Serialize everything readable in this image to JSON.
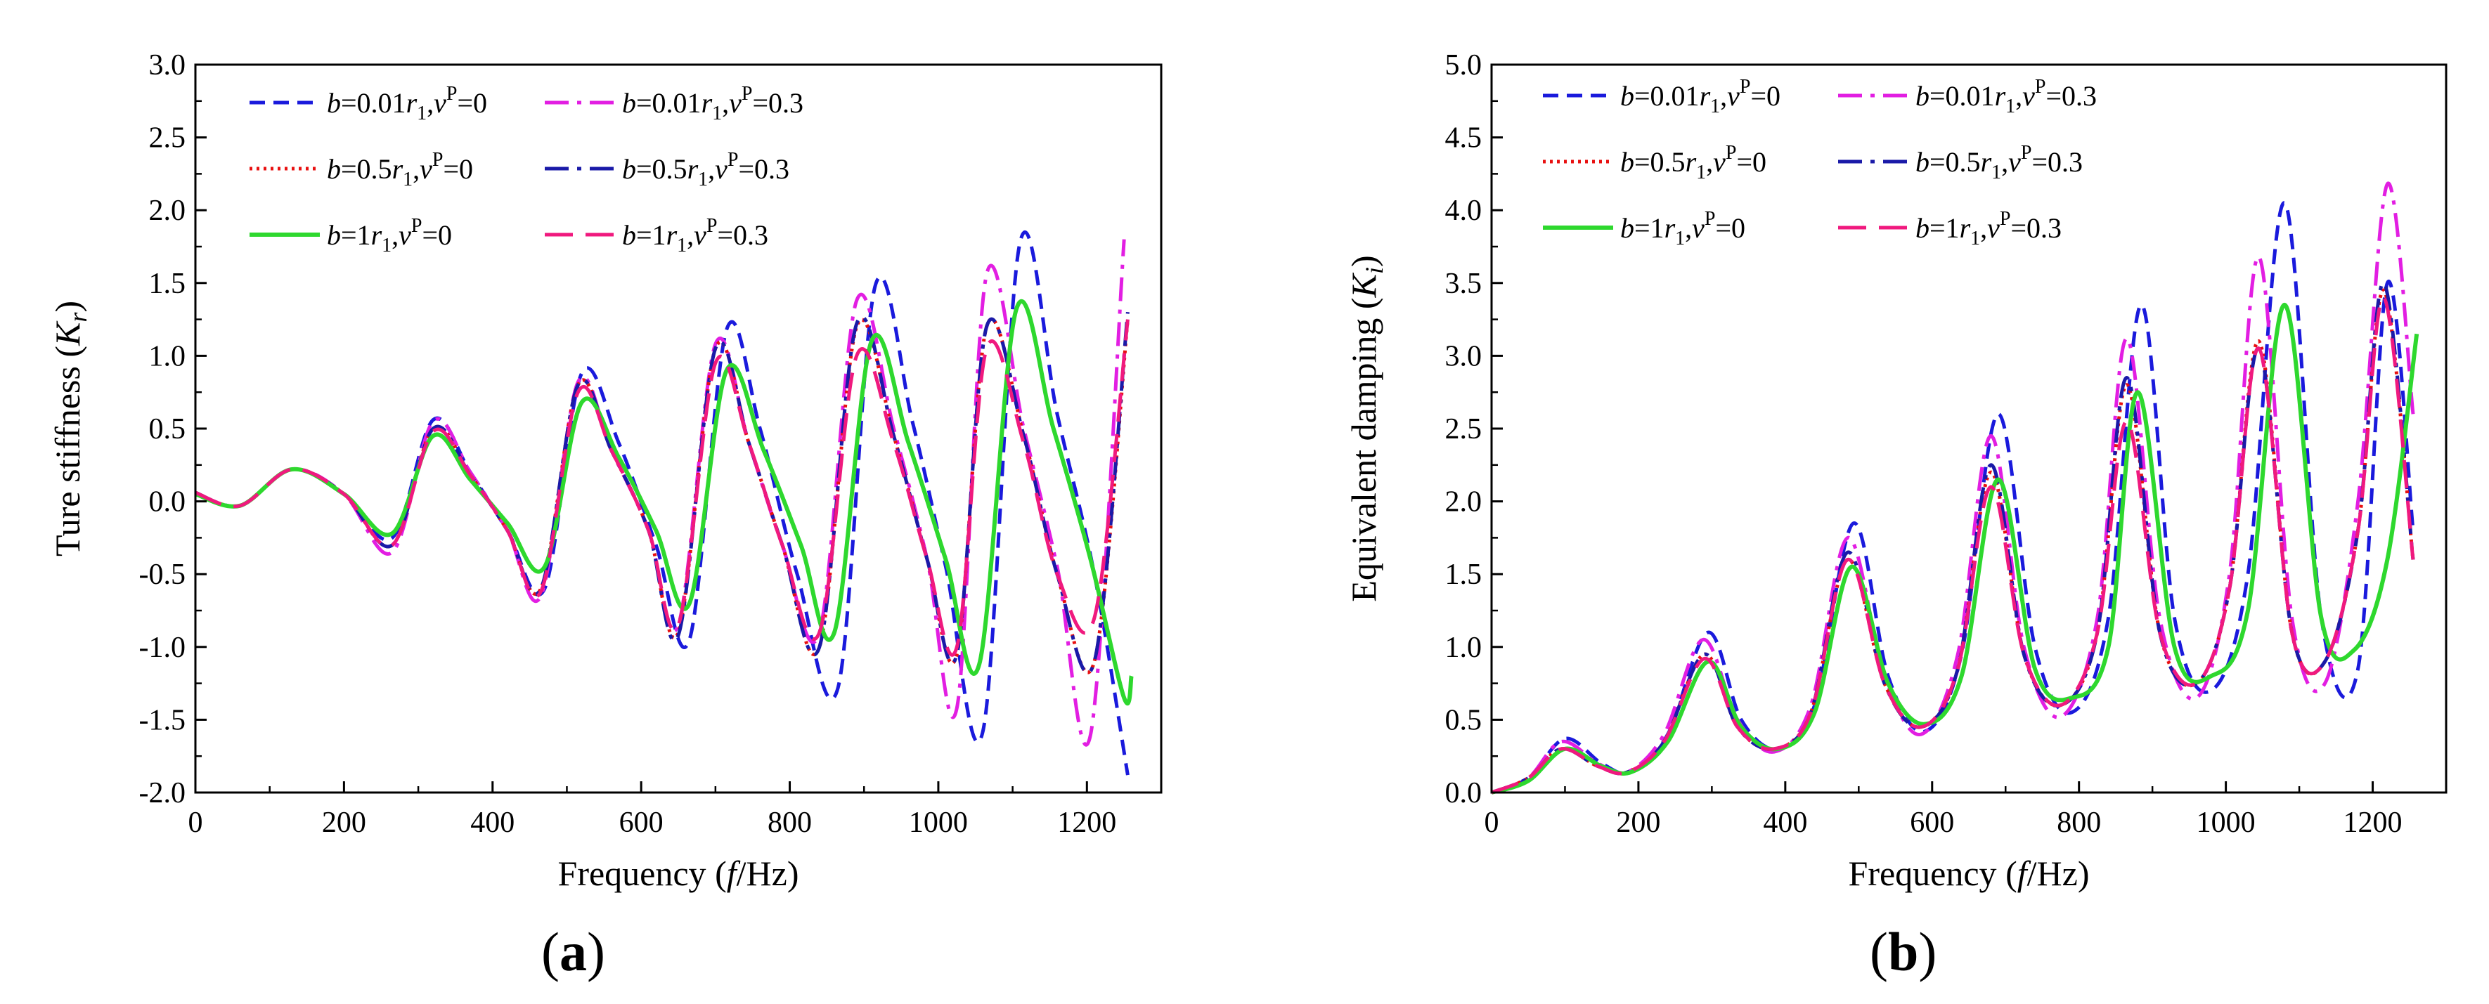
{
  "chart_data": [
    {
      "panel": "(a)",
      "type": "line",
      "xlabel": "Frequency",
      "xlabel_unit": "(f/Hz)",
      "ylabel": "Ture stiffness",
      "ylabel_symbol": "(Kr)",
      "xlim": [
        0,
        1300
      ],
      "ylim": [
        -2.0,
        3.0
      ],
      "xticks": [
        0,
        200,
        400,
        600,
        800,
        1000,
        1200
      ],
      "yticks": [
        -2.0,
        -1.5,
        -1.0,
        -0.5,
        0.0,
        0.5,
        1.0,
        1.5,
        2.0,
        2.5,
        3.0
      ],
      "legend": [
        {
          "b": "0.01",
          "nu": "0",
          "color": "#1a1adc",
          "style": "dash"
        },
        {
          "b": "0.01",
          "nu": "0.3",
          "color": "#e21ee2",
          "style": "dashdot"
        },
        {
          "b": "0.5",
          "nu": "0",
          "color": "#e81010",
          "style": "dot"
        },
        {
          "b": "0.5",
          "nu": "0.3",
          "color": "#1a1aa8",
          "style": "dashdot"
        },
        {
          "b": "1",
          "nu": "0",
          "color": "#2ed82e",
          "style": "solid"
        },
        {
          "b": "1",
          "nu": "0.3",
          "color": "#f0197e",
          "style": "longdash"
        }
      ],
      "series": [
        {
          "name": "b=0.01r1, vP=0",
          "x": [
            0,
            60,
            130,
            200,
            265,
            320,
            370,
            420,
            470,
            520,
            570,
            620,
            665,
            715,
            760,
            810,
            865,
            915,
            965,
            1010,
            1060,
            1110,
            1160,
            1210,
            1255
          ],
          "y": [
            0.05,
            -0.03,
            0.22,
            0.05,
            -0.25,
            0.56,
            0.2,
            -0.2,
            -0.6,
            0.88,
            0.4,
            -0.3,
            -0.95,
            1.18,
            0.5,
            -0.5,
            -1.28,
            1.48,
            0.55,
            -0.45,
            -1.58,
            1.78,
            0.6,
            -0.5,
            -1.88
          ]
        },
        {
          "name": "b=0.01r1, vP=0.3",
          "x": [
            0,
            60,
            130,
            200,
            265,
            320,
            370,
            420,
            465,
            515,
            560,
            610,
            650,
            700,
            745,
            790,
            840,
            890,
            940,
            985,
            1025,
            1065,
            1115,
            1160,
            1205,
            1250
          ],
          "y": [
            0.05,
            -0.03,
            0.22,
            0.05,
            -0.35,
            0.55,
            0.2,
            -0.2,
            -0.65,
            0.82,
            0.35,
            -0.2,
            -0.85,
            1.08,
            0.4,
            -0.3,
            -0.9,
            1.38,
            0.5,
            -0.4,
            -1.42,
            1.56,
            0.5,
            -0.45,
            -1.6,
            1.8
          ]
        },
        {
          "name": "b=0.5r1, vP=0",
          "x": [
            0,
            60,
            130,
            200,
            265,
            320,
            370,
            420,
            465,
            515,
            560,
            610,
            650,
            700,
            745,
            790,
            840,
            890,
            940,
            985,
            1025,
            1065,
            1115,
            1160,
            1210,
            1255
          ],
          "y": [
            0.06,
            -0.03,
            0.22,
            0.05,
            -0.3,
            0.5,
            0.18,
            -0.2,
            -0.6,
            0.8,
            0.35,
            -0.2,
            -0.9,
            1.05,
            0.4,
            -0.3,
            -1.0,
            1.2,
            0.45,
            -0.4,
            -1.05,
            1.2,
            0.45,
            -0.5,
            -1.1,
            1.25
          ]
        },
        {
          "name": "b=0.5r1, vP=0.3",
          "x": [
            0,
            60,
            130,
            200,
            265,
            320,
            370,
            420,
            465,
            515,
            560,
            610,
            650,
            700,
            745,
            790,
            840,
            890,
            940,
            985,
            1025,
            1065,
            1115,
            1160,
            1210,
            1255
          ],
          "y": [
            0.06,
            -0.03,
            0.22,
            0.05,
            -0.3,
            0.5,
            0.18,
            -0.2,
            -0.6,
            0.8,
            0.35,
            -0.2,
            -0.92,
            1.05,
            0.4,
            -0.3,
            -1.0,
            1.22,
            0.45,
            -0.4,
            -1.05,
            1.2,
            0.45,
            -0.5,
            -1.1,
            1.3
          ]
        },
        {
          "name": "b=1r1, vP=0",
          "x": [
            0,
            60,
            130,
            200,
            265,
            320,
            370,
            420,
            470,
            520,
            570,
            620,
            665,
            715,
            765,
            815,
            860,
            910,
            960,
            1010,
            1055,
            1105,
            1155,
            1205,
            1250,
            1260
          ],
          "y": [
            0.05,
            -0.03,
            0.22,
            0.05,
            -0.22,
            0.45,
            0.15,
            -0.15,
            -0.45,
            0.68,
            0.3,
            -0.2,
            -0.7,
            0.9,
            0.35,
            -0.3,
            -0.9,
            1.1,
            0.4,
            -0.4,
            -1.12,
            1.32,
            0.5,
            -0.4,
            -1.35,
            -1.2
          ]
        },
        {
          "name": "b=1r1, vP=0.3",
          "x": [
            0,
            60,
            130,
            200,
            265,
            320,
            370,
            420,
            465,
            515,
            560,
            610,
            650,
            700,
            745,
            790,
            840,
            890,
            940,
            985,
            1025,
            1065,
            1115,
            1160,
            1210,
            1255
          ],
          "y": [
            0.06,
            -0.03,
            0.22,
            0.05,
            -0.3,
            0.48,
            0.18,
            -0.2,
            -0.62,
            0.75,
            0.35,
            -0.2,
            -0.85,
            0.95,
            0.4,
            -0.3,
            -0.9,
            1.0,
            0.4,
            -0.4,
            -1.0,
            1.05,
            0.4,
            -0.5,
            -0.8,
            1.25
          ]
        }
      ]
    },
    {
      "panel": "(b)",
      "type": "line",
      "xlabel": "Frequency",
      "xlabel_unit": "(f/Hz)",
      "ylabel": "Equivalent damping",
      "ylabel_symbol": "(Ki)",
      "xlim": [
        0,
        1300
      ],
      "ylim": [
        0.0,
        5.0
      ],
      "xticks": [
        0,
        200,
        400,
        600,
        800,
        1000,
        1200
      ],
      "yticks": [
        0.0,
        0.5,
        1.0,
        1.5,
        2.0,
        2.5,
        3.0,
        3.5,
        4.0,
        4.5,
        5.0
      ],
      "legend": [
        {
          "b": "0.01",
          "nu": "0",
          "color": "#1a1adc",
          "style": "dash"
        },
        {
          "b": "0.01",
          "nu": "0.3",
          "color": "#e21ee2",
          "style": "dashdot"
        },
        {
          "b": "0.5",
          "nu": "0",
          "color": "#e81010",
          "style": "dot"
        },
        {
          "b": "0.5",
          "nu": "0.3",
          "color": "#1a1aa8",
          "style": "dashdot"
        },
        {
          "b": "1",
          "nu": "0",
          "color": "#2ed82e",
          "style": "solid"
        },
        {
          "b": "1",
          "nu": "0.3",
          "color": "#f0197e",
          "style": "longdash"
        }
      ],
      "series": [
        {
          "name": "b=0.01r1, vP=0",
          "x": [
            0,
            50,
            100,
            150,
            190,
            240,
            295,
            340,
            390,
            440,
            493,
            540,
            590,
            640,
            690,
            740,
            790,
            840,
            885,
            930,
            980,
            1030,
            1080,
            1130,
            1180,
            1220,
            1255
          ],
          "y": [
            0,
            0.1,
            0.37,
            0.2,
            0.14,
            0.4,
            1.1,
            0.5,
            0.3,
            0.6,
            1.85,
            0.8,
            0.42,
            0.95,
            2.6,
            1.0,
            0.55,
            1.2,
            3.35,
            1.2,
            0.7,
            1.5,
            4.05,
            1.2,
            0.85,
            3.5,
            1.8
          ]
        },
        {
          "name": "b=0.01r1, vP=0.3",
          "x": [
            0,
            50,
            95,
            145,
            185,
            235,
            288,
            335,
            385,
            435,
            485,
            535,
            585,
            635,
            680,
            725,
            775,
            825,
            865,
            910,
            960,
            1005,
            1045,
            1090,
            1135,
            1180,
            1220,
            1255
          ],
          "y": [
            0,
            0.1,
            0.35,
            0.2,
            0.14,
            0.4,
            1.05,
            0.5,
            0.28,
            0.6,
            1.75,
            0.8,
            0.4,
            0.95,
            2.45,
            1.0,
            0.52,
            1.2,
            3.12,
            1.2,
            0.65,
            1.5,
            3.68,
            1.2,
            0.75,
            2.0,
            4.18,
            2.6
          ]
        },
        {
          "name": "b=0.5r1, vP=0",
          "x": [
            0,
            50,
            95,
            145,
            185,
            235,
            290,
            335,
            385,
            435,
            485,
            535,
            585,
            635,
            680,
            725,
            775,
            825,
            865,
            910,
            960,
            1005,
            1045,
            1090,
            1135,
            1180,
            1215,
            1255
          ],
          "y": [
            0,
            0.1,
            0.3,
            0.18,
            0.14,
            0.35,
            0.95,
            0.45,
            0.3,
            0.55,
            1.6,
            0.75,
            0.45,
            0.85,
            2.2,
            0.95,
            0.6,
            1.1,
            2.8,
            1.1,
            0.75,
            1.4,
            3.1,
            1.1,
            0.9,
            1.8,
            3.45,
            1.6
          ]
        },
        {
          "name": "b=0.5r1, vP=0.3",
          "x": [
            0,
            50,
            95,
            145,
            185,
            235,
            290,
            335,
            385,
            435,
            485,
            535,
            585,
            635,
            680,
            725,
            775,
            825,
            865,
            910,
            960,
            1005,
            1045,
            1090,
            1135,
            1180,
            1215,
            1255
          ],
          "y": [
            0,
            0.1,
            0.3,
            0.18,
            0.14,
            0.35,
            0.95,
            0.45,
            0.3,
            0.55,
            1.65,
            0.75,
            0.45,
            0.85,
            2.25,
            0.95,
            0.6,
            1.1,
            2.85,
            1.1,
            0.75,
            1.4,
            3.05,
            1.1,
            0.9,
            1.8,
            3.5,
            1.6
          ]
        },
        {
          "name": "b=1r1, vP=0",
          "x": [
            0,
            50,
            100,
            150,
            190,
            240,
            295,
            340,
            390,
            440,
            490,
            540,
            590,
            640,
            690,
            740,
            790,
            840,
            880,
            930,
            980,
            1030,
            1080,
            1130,
            1175,
            1220,
            1260
          ],
          "y": [
            0,
            0.08,
            0.3,
            0.18,
            0.14,
            0.35,
            0.9,
            0.45,
            0.3,
            0.55,
            1.55,
            0.75,
            0.47,
            0.8,
            2.15,
            0.85,
            0.65,
            1.0,
            2.75,
            1.0,
            0.8,
            1.25,
            3.35,
            1.2,
            0.98,
            1.6,
            3.15
          ]
        },
        {
          "name": "b=1r1, vP=0.3",
          "x": [
            0,
            50,
            95,
            145,
            185,
            235,
            290,
            335,
            385,
            435,
            485,
            535,
            585,
            635,
            680,
            725,
            775,
            825,
            865,
            910,
            960,
            1005,
            1045,
            1090,
            1135,
            1180,
            1215,
            1255
          ],
          "y": [
            0,
            0.1,
            0.3,
            0.18,
            0.14,
            0.35,
            0.92,
            0.45,
            0.3,
            0.55,
            1.6,
            0.75,
            0.45,
            0.85,
            2.1,
            0.95,
            0.6,
            1.1,
            2.55,
            1.1,
            0.75,
            1.4,
            3.05,
            1.1,
            0.9,
            1.8,
            3.4,
            1.6
          ]
        }
      ]
    }
  ],
  "panel_labels": [
    "a",
    "b"
  ]
}
